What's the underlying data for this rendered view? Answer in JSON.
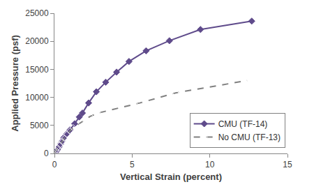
{
  "chart_data": {
    "type": "line",
    "x_label": "Vertical Strain (percent)",
    "y_label": "Applied Pressure (psf)",
    "xlim": [
      0,
      15
    ],
    "xticks": [
      0,
      5,
      10,
      15
    ],
    "ylim": [
      0,
      25000
    ],
    "yticks": [
      0,
      5000,
      10000,
      15000,
      20000,
      25000
    ],
    "grid": false,
    "legend": "lower right",
    "series": [
      {
        "name": "CMU (TF-14)",
        "color": "#5f4b8b",
        "marker": "diamond",
        "line_style": "solid",
        "x": [
          0,
          0.1,
          0.2,
          0.3,
          0.4,
          0.5,
          0.6,
          0.8,
          1.0,
          1.3,
          1.6,
          1.8,
          2.2,
          2.7,
          3.3,
          4.0,
          4.8,
          5.9,
          7.4,
          9.4,
          12.7
        ],
        "values": [
          0,
          300,
          700,
          1200,
          1700,
          2200,
          2800,
          3500,
          4200,
          5300,
          6500,
          7200,
          9000,
          11000,
          12700,
          14500,
          16400,
          18300,
          20100,
          22100,
          23600
        ]
      },
      {
        "name": "No CMU (TF-13)",
        "color": "#808080",
        "marker": "diamond-open",
        "line_style": "dash",
        "x": [
          0,
          0.1,
          0.2,
          0.35,
          0.5,
          0.65,
          0.8,
          1.0,
          1.2,
          1.7,
          2.3,
          2.8,
          5.5,
          7.8,
          12.4
        ],
        "values": [
          0,
          500,
          1000,
          1500,
          2100,
          2700,
          3400,
          4000,
          4600,
          5500,
          6600,
          7200,
          9000,
          10800,
          13000
        ]
      }
    ]
  }
}
